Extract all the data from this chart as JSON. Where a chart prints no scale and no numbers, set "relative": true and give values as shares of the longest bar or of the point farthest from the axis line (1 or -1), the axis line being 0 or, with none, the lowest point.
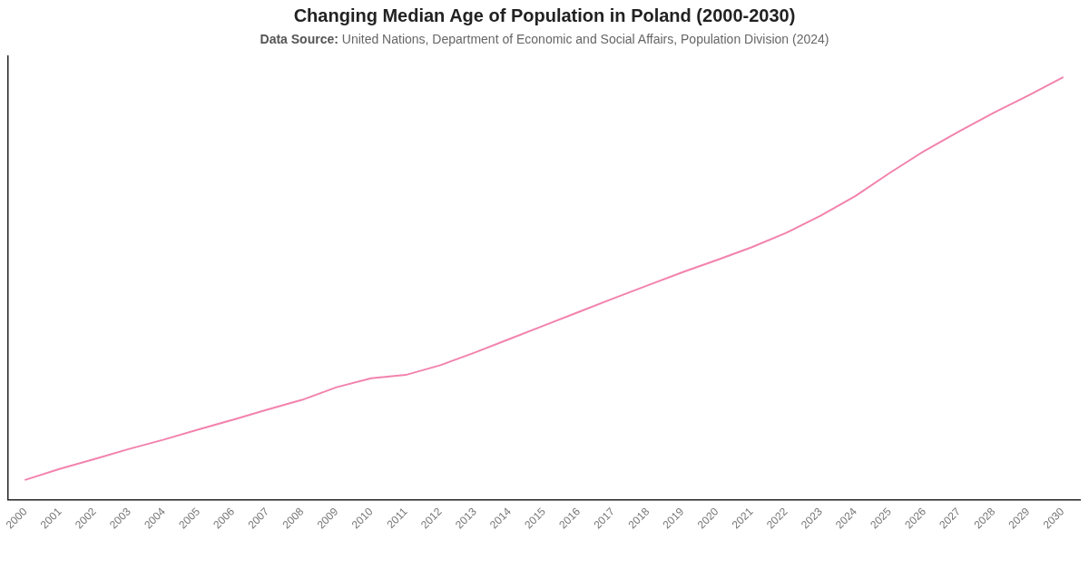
{
  "chart_data": {
    "type": "line",
    "title": "Changing Median Age of Population in Poland (2000-2030)",
    "subtitle": "Data Source: United Nations, Department of Economic and Social Affairs, Population Division (2024)",
    "categories": [
      "2000",
      "2001",
      "2002",
      "2003",
      "2004",
      "2005",
      "2006",
      "2007",
      "2008",
      "2009",
      "2010",
      "2011",
      "2012",
      "2013",
      "2014",
      "2015",
      "2016",
      "2017",
      "2018",
      "2019",
      "2020",
      "2021",
      "2022",
      "2023",
      "2024",
      "2025",
      "2026",
      "2027",
      "2028",
      "2029",
      "2030"
    ],
    "relative": true,
    "color": "#f283ad",
    "marker": "none",
    "values": [
      0.048,
      0.074,
      0.097,
      0.121,
      0.143,
      0.167,
      0.19,
      0.214,
      0.237,
      0.267,
      0.288,
      0.296,
      0.319,
      0.349,
      0.381,
      0.413,
      0.445,
      0.477,
      0.508,
      0.539,
      0.568,
      0.598,
      0.632,
      0.673,
      0.719,
      0.774,
      0.826,
      0.872,
      0.916,
      0.957,
      1
    ]
  }
}
